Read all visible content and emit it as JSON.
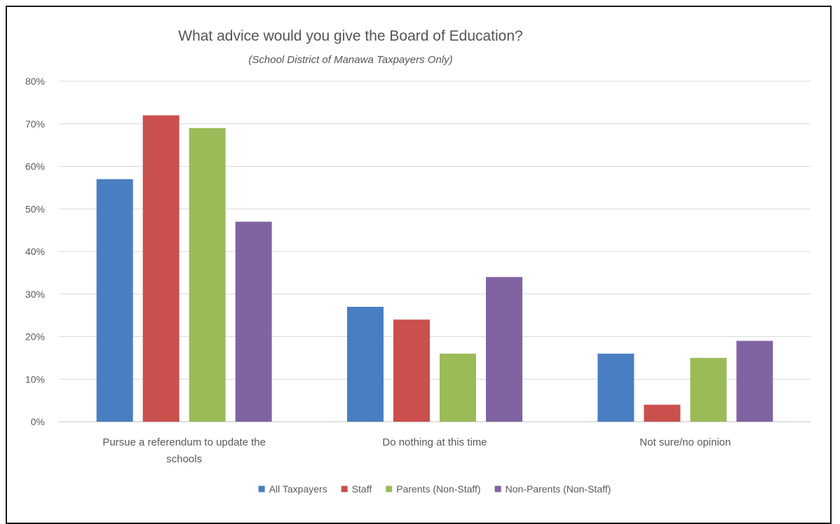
{
  "chart_data": {
    "type": "bar",
    "title": "What advice would you give the Board of Education?",
    "subtitle": "(School District of Manawa Taxpayers Only)",
    "categories": [
      [
        "Pursue a referendum to update the",
        "schools"
      ],
      [
        "Do nothing at this time"
      ],
      [
        "Not sure/no opinion"
      ]
    ],
    "y_ticks": [
      "0%",
      "10%",
      "20%",
      "30%",
      "40%",
      "50%",
      "60%",
      "70%",
      "80%"
    ],
    "ylim": [
      0,
      80
    ],
    "grid": true,
    "legend_position": "bottom",
    "series": [
      {
        "name": "All Taxpayers",
        "color": "#4a7ec2",
        "values": [
          57,
          27,
          16
        ]
      },
      {
        "name": "Staff",
        "color": "#c9504d",
        "values": [
          72,
          24,
          4
        ]
      },
      {
        "name": "Parents (Non-Staff)",
        "color": "#9bbb59",
        "values": [
          69,
          16,
          15
        ]
      },
      {
        "name": "Non-Parents (Non-Staff)",
        "color": "#8064a2",
        "values": [
          47,
          34,
          19
        ]
      }
    ]
  }
}
